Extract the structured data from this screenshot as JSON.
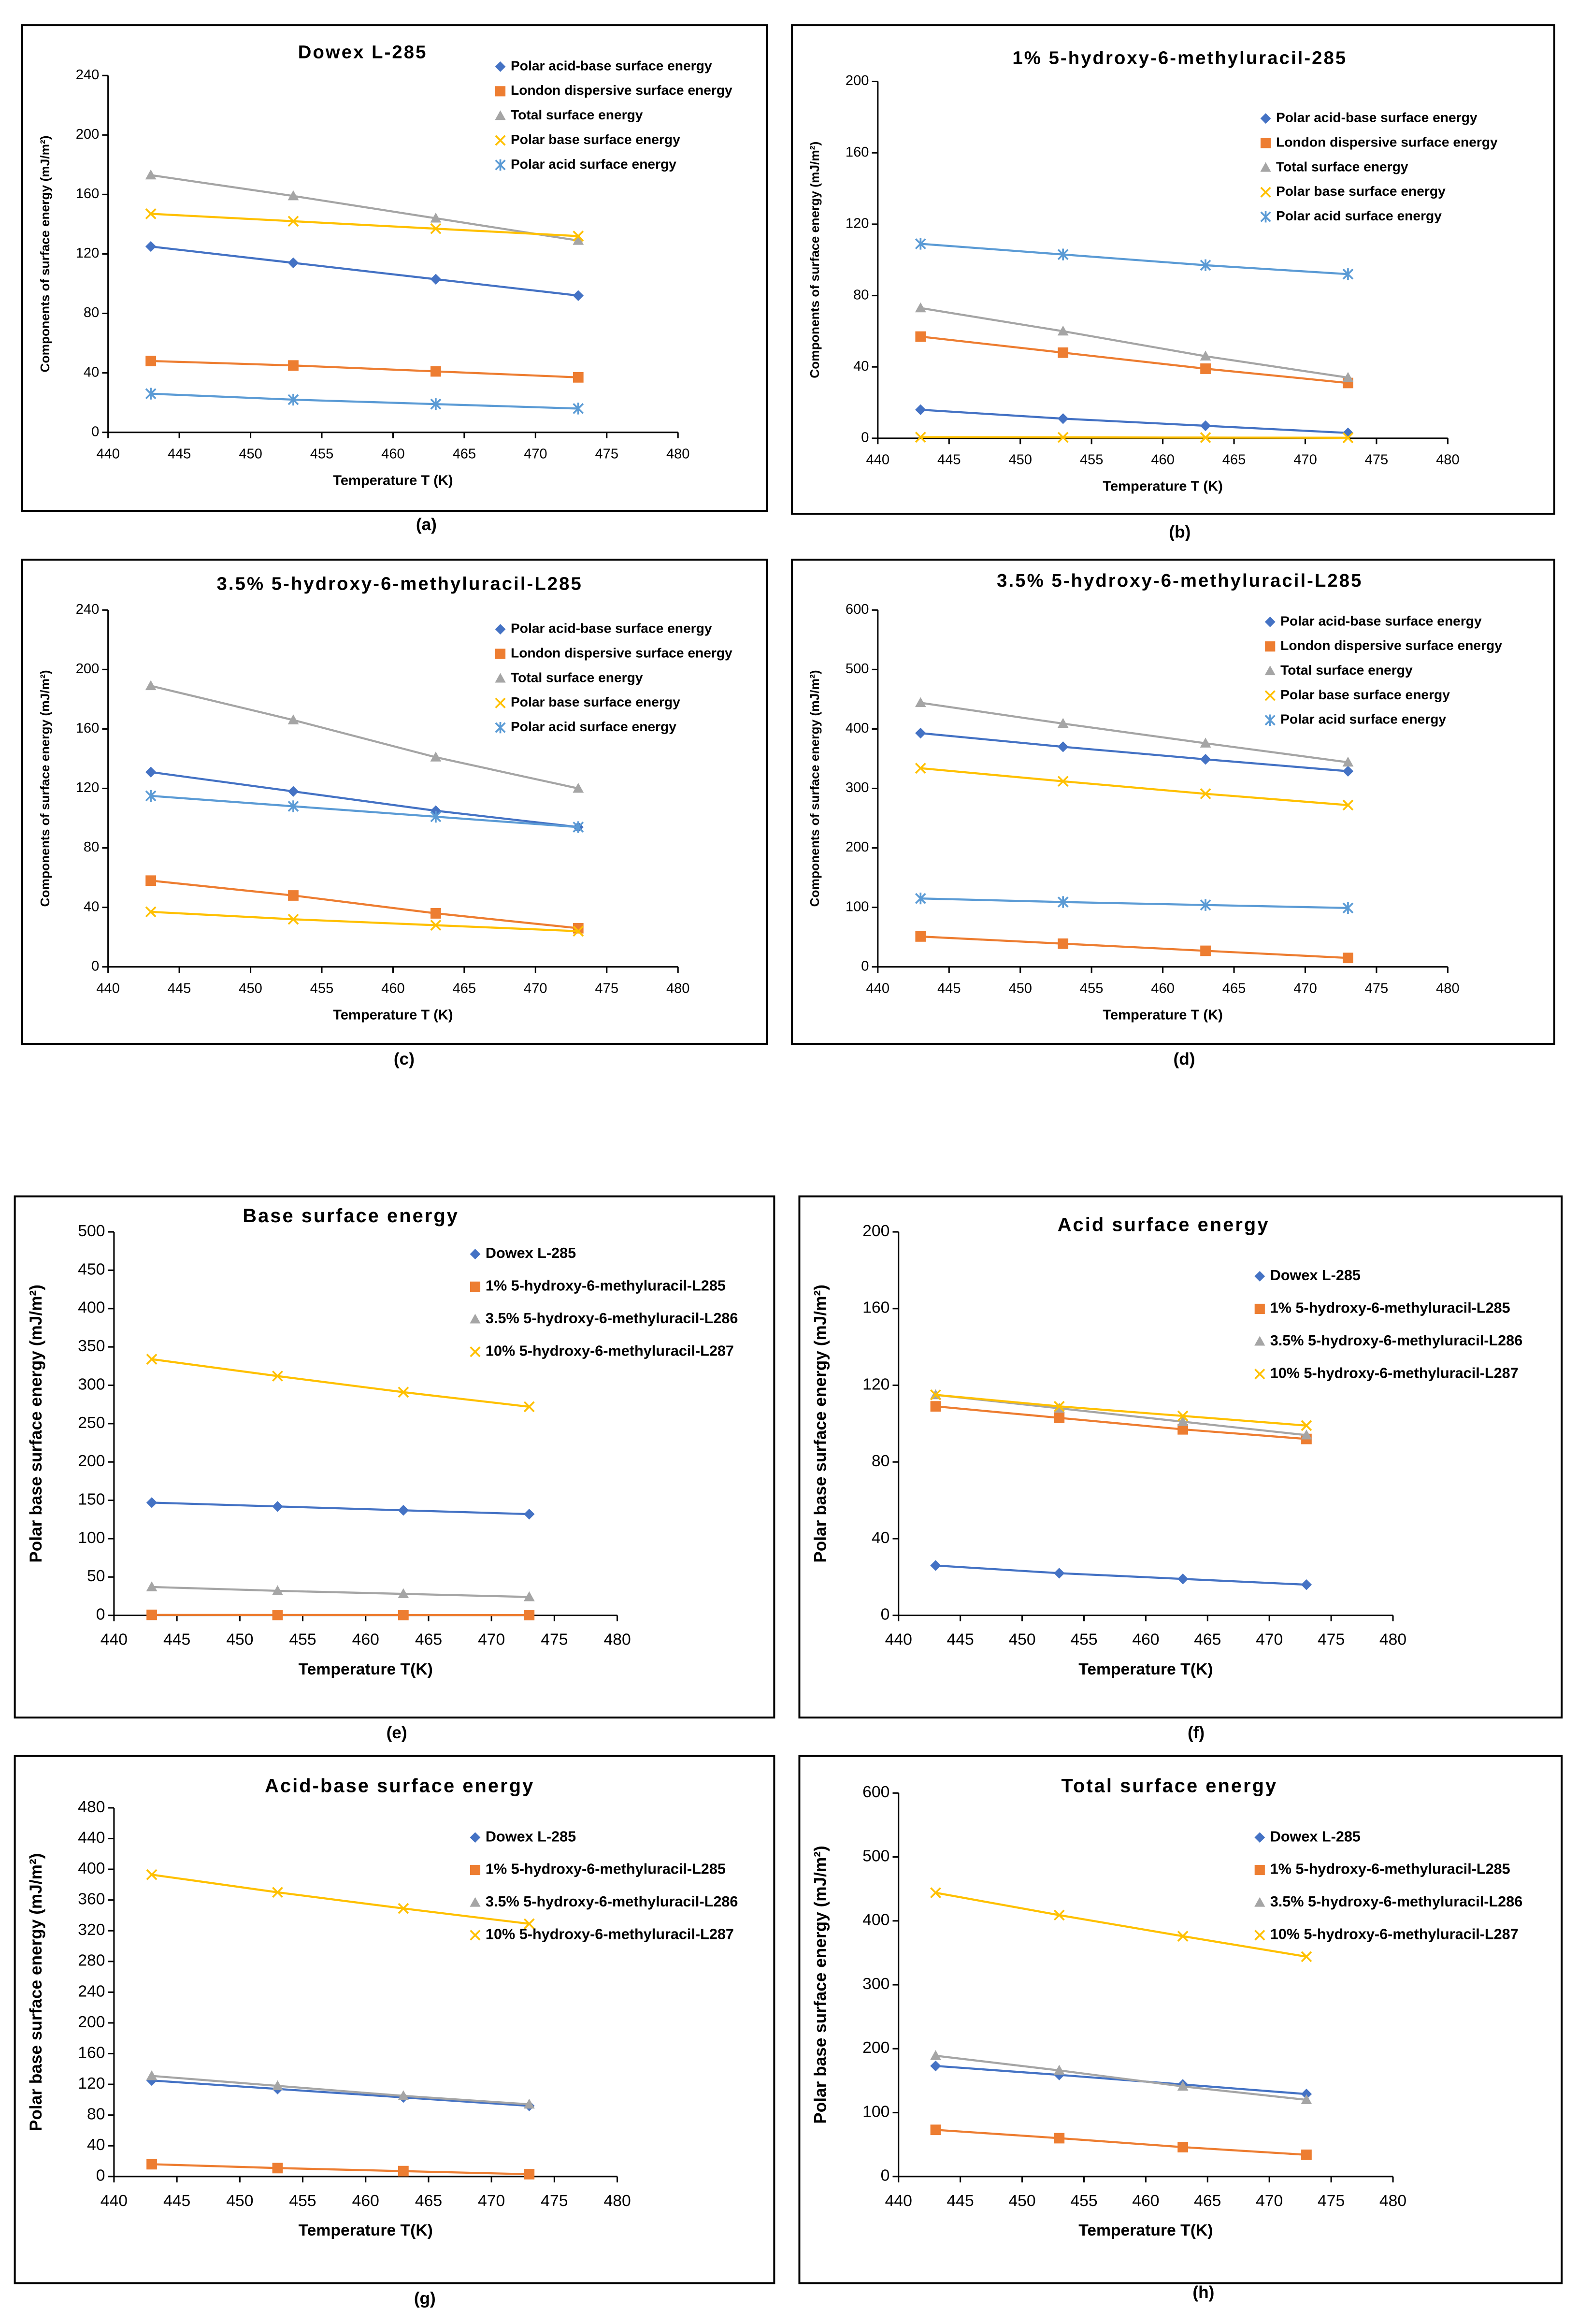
{
  "chart_data": [
    {
      "type": "line",
      "title": "Dowex L-285",
      "caption": "(a)",
      "x_label": "Temperature T (K)",
      "y_label": "Components of surface energy (mJ/m²)",
      "x": [
        443,
        453,
        463,
        473
      ],
      "xlim": [
        440,
        480
      ],
      "xticks": [
        440,
        445,
        450,
        455,
        460,
        465,
        470,
        475,
        480
      ],
      "ylim": [
        0,
        240
      ],
      "yticks": [
        0,
        40,
        80,
        120,
        160,
        200,
        240
      ],
      "series": [
        {
          "name": "Polar acid-base surface energy",
          "color": "#4472c4",
          "marker": "diamond",
          "values": [
            125,
            114,
            103,
            92
          ]
        },
        {
          "name": "London dispersive surface energy",
          "color": "#ed7d31",
          "marker": "square",
          "values": [
            48,
            45,
            41,
            37
          ]
        },
        {
          "name": "Total surface energy",
          "color": "#a5a5a5",
          "marker": "triangle",
          "values": [
            173,
            159,
            144,
            129
          ]
        },
        {
          "name": "Polar base surface energy",
          "color": "#ffc000",
          "marker": "x",
          "values": [
            147,
            142,
            137,
            132
          ]
        },
        {
          "name": "Polar acid surface energy",
          "color": "#5b9bd5",
          "marker": "star",
          "values": [
            26,
            22,
            19,
            16
          ]
        }
      ]
    },
    {
      "type": "line",
      "title": "1% 5-hydroxy-6-methyluracil-285",
      "caption": "(b)",
      "x_label": "Temperature T (K)",
      "y_label": "Components of surface energy (mJ/m²)",
      "x": [
        443,
        453,
        463,
        473
      ],
      "xlim": [
        440,
        480
      ],
      "xticks": [
        440,
        445,
        450,
        455,
        460,
        465,
        470,
        475,
        480
      ],
      "ylim": [
        0,
        200
      ],
      "yticks": [
        0,
        40,
        80,
        120,
        160,
        200
      ],
      "series": [
        {
          "name": "Polar acid-base surface energy",
          "color": "#4472c4",
          "marker": "diamond",
          "values": [
            16,
            11,
            7,
            3
          ]
        },
        {
          "name": "London dispersive surface energy",
          "color": "#ed7d31",
          "marker": "square",
          "values": [
            57,
            48,
            39,
            31
          ]
        },
        {
          "name": "Total surface energy",
          "color": "#a5a5a5",
          "marker": "triangle",
          "values": [
            73,
            60,
            46,
            34
          ]
        },
        {
          "name": "Polar base surface energy",
          "color": "#ffc000",
          "marker": "x",
          "values": [
            0.6,
            0.5,
            0.4,
            0.3
          ]
        },
        {
          "name": "Polar acid surface energy",
          "color": "#5b9bd5",
          "marker": "star",
          "values": [
            109,
            103,
            97,
            92
          ]
        }
      ]
    },
    {
      "type": "line",
      "title": "3.5% 5-hydroxy-6-methyluracil-L285",
      "caption": "(c)",
      "x_label": "Temperature T (K)",
      "y_label": "Components of surface energy (mJ/m²)",
      "x": [
        443,
        453,
        463,
        473
      ],
      "xlim": [
        440,
        480
      ],
      "xticks": [
        440,
        445,
        450,
        455,
        460,
        465,
        470,
        475,
        480
      ],
      "ylim": [
        0,
        240
      ],
      "yticks": [
        0,
        40,
        80,
        120,
        160,
        200,
        240
      ],
      "series": [
        {
          "name": "Polar acid-base surface energy",
          "color": "#4472c4",
          "marker": "diamond",
          "values": [
            131,
            118,
            105,
            94
          ]
        },
        {
          "name": "London dispersive surface energy",
          "color": "#ed7d31",
          "marker": "square",
          "values": [
            58,
            48,
            36,
            26
          ]
        },
        {
          "name": "Total surface energy",
          "color": "#a5a5a5",
          "marker": "triangle",
          "values": [
            189,
            166,
            141,
            120
          ]
        },
        {
          "name": "Polar base surface energy",
          "color": "#ffc000",
          "marker": "x",
          "values": [
            37,
            32,
            28,
            24
          ]
        },
        {
          "name": "Polar acid surface energy",
          "color": "#5b9bd5",
          "marker": "star",
          "values": [
            115,
            108,
            101,
            94
          ]
        }
      ]
    },
    {
      "type": "line",
      "title": "3.5% 5-hydroxy-6-methyluracil-L285",
      "caption": "(d)",
      "x_label": "Temperature T (K)",
      "y_label": "Components of surface energy (mJ/m²)",
      "x": [
        443,
        453,
        463,
        473
      ],
      "xlim": [
        440,
        480
      ],
      "xticks": [
        440,
        445,
        450,
        455,
        460,
        465,
        470,
        475,
        480
      ],
      "ylim": [
        0,
        600
      ],
      "yticks": [
        0,
        100,
        200,
        300,
        400,
        500,
        600
      ],
      "series": [
        {
          "name": "Polar acid-base surface energy",
          "color": "#4472c4",
          "marker": "diamond",
          "values": [
            393,
            370,
            349,
            329
          ]
        },
        {
          "name": "London dispersive surface energy",
          "color": "#ed7d31",
          "marker": "square",
          "values": [
            51,
            39,
            27,
            15
          ]
        },
        {
          "name": "Total surface energy",
          "color": "#a5a5a5",
          "marker": "triangle",
          "values": [
            444,
            409,
            376,
            344
          ]
        },
        {
          "name": "Polar base surface energy",
          "color": "#ffc000",
          "marker": "x",
          "values": [
            334,
            312,
            291,
            272
          ]
        },
        {
          "name": "Polar acid surface energy",
          "color": "#5b9bd5",
          "marker": "star",
          "values": [
            115,
            109,
            104,
            99
          ]
        }
      ]
    },
    {
      "type": "line",
      "title": "Base surface energy",
      "caption": "(e)",
      "x_label": "Temperature T(K)",
      "y_label": "Polar base surface energy (mJ/m²)",
      "x": [
        443,
        453,
        463,
        473
      ],
      "xlim": [
        440,
        480
      ],
      "xticks": [
        440,
        445,
        450,
        455,
        460,
        465,
        470,
        475,
        480
      ],
      "ylim": [
        0,
        500
      ],
      "yticks": [
        0,
        50,
        100,
        150,
        200,
        250,
        300,
        350,
        400,
        450,
        500
      ],
      "series": [
        {
          "name": "Dowex L-285",
          "color": "#4472c4",
          "marker": "diamond",
          "values": [
            147,
            142,
            137,
            132
          ]
        },
        {
          "name": "1% 5-hydroxy-6-methyluracil-L285",
          "color": "#ed7d31",
          "marker": "square",
          "values": [
            0.6,
            0.5,
            0.4,
            0.3
          ]
        },
        {
          "name": "3.5% 5-hydroxy-6-methyluracil-L286",
          "color": "#a5a5a5",
          "marker": "triangle",
          "values": [
            37,
            32,
            28,
            24
          ]
        },
        {
          "name": "10% 5-hydroxy-6-methyluracil-L287",
          "color": "#ffc000",
          "marker": "x",
          "values": [
            334,
            312,
            291,
            272
          ]
        }
      ]
    },
    {
      "type": "line",
      "title": "Acid surface energy",
      "caption": "(f)",
      "x_label": "Temperature T(K)",
      "y_label": "Polar base surface energy (mJ/m²)",
      "x": [
        443,
        453,
        463,
        473
      ],
      "xlim": [
        440,
        480
      ],
      "xticks": [
        440,
        445,
        450,
        455,
        460,
        465,
        470,
        475,
        480
      ],
      "ylim": [
        0,
        200
      ],
      "yticks": [
        0,
        40,
        80,
        120,
        160,
        200
      ],
      "series": [
        {
          "name": "Dowex L-285",
          "color": "#4472c4",
          "marker": "diamond",
          "values": [
            26,
            22,
            19,
            16
          ]
        },
        {
          "name": "1% 5-hydroxy-6-methyluracil-L285",
          "color": "#ed7d31",
          "marker": "square",
          "values": [
            109,
            103,
            97,
            92
          ]
        },
        {
          "name": "3.5% 5-hydroxy-6-methyluracil-L286",
          "color": "#a5a5a5",
          "marker": "triangle",
          "values": [
            115,
            108,
            101,
            94
          ]
        },
        {
          "name": "10% 5-hydroxy-6-methyluracil-L287",
          "color": "#ffc000",
          "marker": "x",
          "values": [
            115,
            109,
            104,
            99
          ]
        }
      ]
    },
    {
      "type": "line",
      "title": "Acid-base surface energy",
      "caption": "(g)",
      "x_label": "Temperature T(K)",
      "y_label": "Polar base surface energy (mJ/m²)",
      "x": [
        443,
        453,
        463,
        473
      ],
      "xlim": [
        440,
        480
      ],
      "xticks": [
        440,
        445,
        450,
        455,
        460,
        465,
        470,
        475,
        480
      ],
      "ylim": [
        0,
        480
      ],
      "yticks": [
        0,
        40,
        80,
        120,
        160,
        200,
        240,
        280,
        320,
        360,
        400,
        440,
        480
      ],
      "series": [
        {
          "name": "Dowex L-285",
          "color": "#4472c4",
          "marker": "diamond",
          "values": [
            125,
            114,
            103,
            92
          ]
        },
        {
          "name": "1% 5-hydroxy-6-methyluracil-L285",
          "color": "#ed7d31",
          "marker": "square",
          "values": [
            16,
            11,
            7,
            3
          ]
        },
        {
          "name": "3.5% 5-hydroxy-6-methyluracil-L286",
          "color": "#a5a5a5",
          "marker": "triangle",
          "values": [
            131,
            118,
            105,
            94
          ]
        },
        {
          "name": "10% 5-hydroxy-6-methyluracil-L287",
          "color": "#ffc000",
          "marker": "x",
          "values": [
            393,
            370,
            349,
            329
          ]
        }
      ]
    },
    {
      "type": "line",
      "title": "Total surface energy",
      "caption": "(h)",
      "x_label": "Temperature T(K)",
      "y_label": "Polar base surface energy (mJ/m²)",
      "x": [
        443,
        453,
        463,
        473
      ],
      "xlim": [
        440,
        480
      ],
      "xticks": [
        440,
        445,
        450,
        455,
        460,
        465,
        470,
        475,
        480
      ],
      "ylim": [
        0,
        600
      ],
      "yticks": [
        0,
        100,
        200,
        300,
        400,
        500,
        600
      ],
      "series": [
        {
          "name": "Dowex L-285",
          "color": "#4472c4",
          "marker": "diamond",
          "values": [
            173,
            159,
            144,
            129
          ]
        },
        {
          "name": "1% 5-hydroxy-6-methyluracil-L285",
          "color": "#ed7d31",
          "marker": "square",
          "values": [
            73,
            60,
            46,
            34
          ]
        },
        {
          "name": "3.5% 5-hydroxy-6-methyluracil-L286",
          "color": "#a5a5a5",
          "marker": "triangle",
          "values": [
            189,
            166,
            141,
            120
          ]
        },
        {
          "name": "10% 5-hydroxy-6-methyluracil-L287",
          "color": "#ffc000",
          "marker": "x",
          "values": [
            444,
            409,
            376,
            344
          ]
        }
      ]
    }
  ]
}
